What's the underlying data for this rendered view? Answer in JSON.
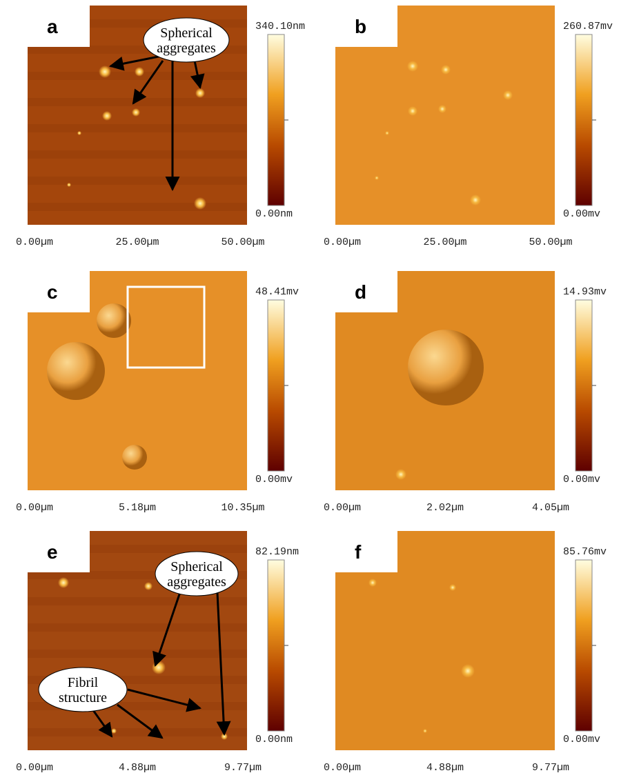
{
  "panels": [
    {
      "label": "a",
      "scale_max": "340.10nm",
      "scale_min": "0.00nm",
      "x_labels": [
        "0.00µm",
        "25.00µm",
        "50.00µm"
      ],
      "annotations": [
        {
          "lines": [
            "Spherical",
            "aggregates"
          ]
        }
      ]
    },
    {
      "label": "b",
      "scale_max": "260.87mv",
      "scale_min": "0.00mv",
      "x_labels": [
        "0.00µm",
        "25.00µm",
        "50.00µm"
      ]
    },
    {
      "label": "c",
      "scale_max": "48.41mv",
      "scale_min": "0.00mv",
      "x_labels": [
        "0.00µm",
        "5.18µm",
        "10.35µm"
      ]
    },
    {
      "label": "d",
      "scale_max": "14.93mv",
      "scale_min": "0.00mv",
      "x_labels": [
        "0.00µm",
        "2.02µm",
        "4.05µm"
      ]
    },
    {
      "label": "e",
      "scale_max": "82.19nm",
      "scale_min": "0.00nm",
      "x_labels": [
        "0.00µm",
        "4.88µm",
        "9.77µm"
      ],
      "annotations": [
        {
          "lines": [
            "Spherical",
            "aggregates"
          ]
        },
        {
          "lines": [
            "Fibril",
            "structure"
          ]
        }
      ]
    },
    {
      "label": "f",
      "scale_max": "85.76mv",
      "scale_min": "0.00mv",
      "x_labels": [
        "0.00µm",
        "4.88µm",
        "9.77µm"
      ]
    }
  ]
}
